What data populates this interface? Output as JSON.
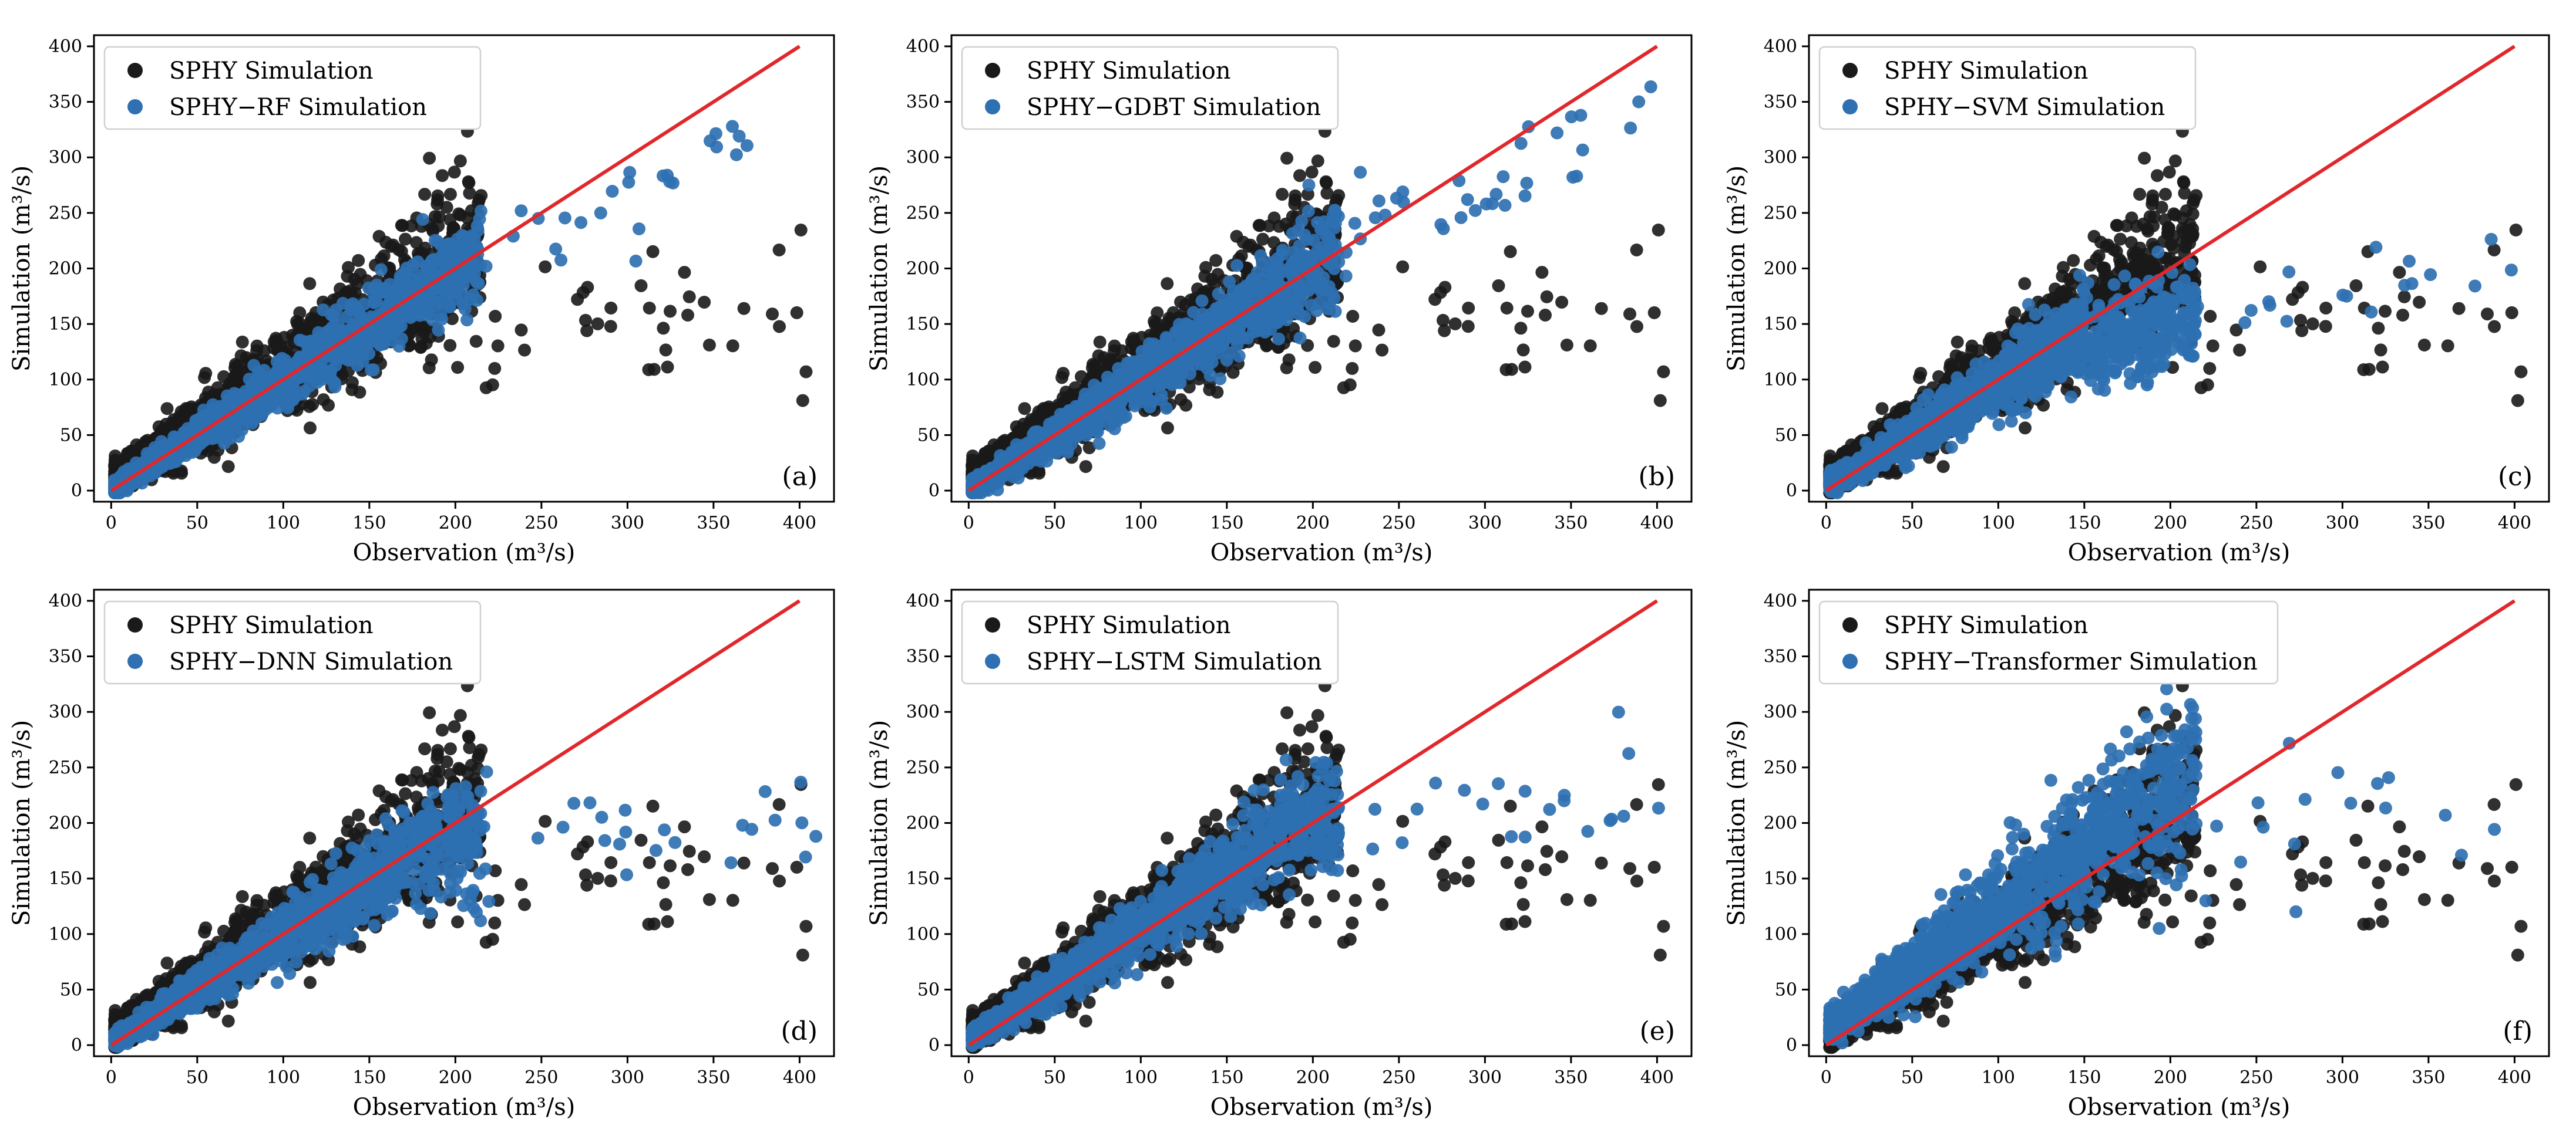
{
  "figure": {
    "colors": {
      "baseline": "#1a1a1a",
      "ml": "#2e70b1",
      "one_to_one_line": "#e0282c"
    }
  },
  "chart_data": [
    {
      "type": "scatter",
      "panel_tag": "(a)",
      "xlabel": "Observation (m³/s)",
      "ylabel": "Simulation (m³/s)",
      "xlim": [
        -10,
        420
      ],
      "ylim": [
        -10,
        410
      ],
      "xticks": [
        0,
        50,
        100,
        150,
        200,
        250,
        300,
        350,
        400
      ],
      "yticks": [
        0,
        50,
        100,
        150,
        200,
        250,
        300,
        350,
        400
      ],
      "legend_position": "top-left",
      "legend": [
        "SPHY Simulation",
        "SPHY−RF Simulation"
      ],
      "one_to_one_line": {
        "x": [
          0,
          400
        ],
        "y": [
          0,
          400
        ]
      },
      "series": [
        {
          "name": "SPHY Simulation",
          "model": "sphy",
          "seed": 11
        },
        {
          "name": "SPHY−RF Simulation",
          "model": "rf",
          "seed": 21
        }
      ]
    },
    {
      "type": "scatter",
      "panel_tag": "(b)",
      "xlabel": "Observation (m³/s)",
      "ylabel": "Simulation (m³/s)",
      "xlim": [
        -10,
        420
      ],
      "ylim": [
        -10,
        410
      ],
      "xticks": [
        0,
        50,
        100,
        150,
        200,
        250,
        300,
        350,
        400
      ],
      "yticks": [
        0,
        50,
        100,
        150,
        200,
        250,
        300,
        350,
        400
      ],
      "legend_position": "top-left",
      "legend": [
        "SPHY Simulation",
        "SPHY−GDBT Simulation"
      ],
      "one_to_one_line": {
        "x": [
          0,
          400
        ],
        "y": [
          0,
          400
        ]
      },
      "series": [
        {
          "name": "SPHY Simulation",
          "model": "sphy",
          "seed": 11
        },
        {
          "name": "SPHY−GDBT Simulation",
          "model": "gdbt",
          "seed": 22
        }
      ]
    },
    {
      "type": "scatter",
      "panel_tag": "(c)",
      "xlabel": "Observation (m³/s)",
      "ylabel": "Simulation (m³/s)",
      "xlim": [
        -10,
        420
      ],
      "ylim": [
        -10,
        410
      ],
      "xticks": [
        0,
        50,
        100,
        150,
        200,
        250,
        300,
        350,
        400
      ],
      "yticks": [
        0,
        50,
        100,
        150,
        200,
        250,
        300,
        350,
        400
      ],
      "legend_position": "top-left",
      "legend": [
        "SPHY Simulation",
        "SPHY−SVM Simulation"
      ],
      "one_to_one_line": {
        "x": [
          0,
          400
        ],
        "y": [
          0,
          400
        ]
      },
      "series": [
        {
          "name": "SPHY Simulation",
          "model": "sphy",
          "seed": 11
        },
        {
          "name": "SPHY−SVM Simulation",
          "model": "svm",
          "seed": 23
        }
      ]
    },
    {
      "type": "scatter",
      "panel_tag": "(d)",
      "xlabel": "Observation (m³/s)",
      "ylabel": "Simulation (m³/s)",
      "xlim": [
        -10,
        420
      ],
      "ylim": [
        -10,
        410
      ],
      "xticks": [
        0,
        50,
        100,
        150,
        200,
        250,
        300,
        350,
        400
      ],
      "yticks": [
        0,
        50,
        100,
        150,
        200,
        250,
        300,
        350,
        400
      ],
      "legend_position": "top-left",
      "legend": [
        "SPHY Simulation",
        "SPHY−DNN Simulation"
      ],
      "one_to_one_line": {
        "x": [
          0,
          400
        ],
        "y": [
          0,
          400
        ]
      },
      "series": [
        {
          "name": "SPHY Simulation",
          "model": "sphy",
          "seed": 11
        },
        {
          "name": "SPHY−DNN Simulation",
          "model": "dnn",
          "seed": 24
        }
      ]
    },
    {
      "type": "scatter",
      "panel_tag": "(e)",
      "xlabel": "Observation (m³/s)",
      "ylabel": "Simulation (m³/s)",
      "xlim": [
        -10,
        420
      ],
      "ylim": [
        -10,
        410
      ],
      "xticks": [
        0,
        50,
        100,
        150,
        200,
        250,
        300,
        350,
        400
      ],
      "yticks": [
        0,
        50,
        100,
        150,
        200,
        250,
        300,
        350,
        400
      ],
      "legend_position": "top-left",
      "legend": [
        "SPHY Simulation",
        "SPHY−LSTM Simulation"
      ],
      "one_to_one_line": {
        "x": [
          0,
          400
        ],
        "y": [
          0,
          400
        ]
      },
      "series": [
        {
          "name": "SPHY Simulation",
          "model": "sphy",
          "seed": 11
        },
        {
          "name": "SPHY−LSTM Simulation",
          "model": "lstm",
          "seed": 25
        }
      ]
    },
    {
      "type": "scatter",
      "panel_tag": "(f)",
      "xlabel": "Observation (m³/s)",
      "ylabel": "Simulation (m³/s)",
      "xlim": [
        -10,
        420
      ],
      "ylim": [
        -10,
        410
      ],
      "xticks": [
        0,
        50,
        100,
        150,
        200,
        250,
        300,
        350,
        400
      ],
      "yticks": [
        0,
        50,
        100,
        150,
        200,
        250,
        300,
        350,
        400
      ],
      "legend_position": "top-left",
      "legend": [
        "SPHY Simulation",
        "SPHY−Transformer Simulation"
      ],
      "one_to_one_line": {
        "x": [
          0,
          400
        ],
        "y": [
          0,
          400
        ]
      },
      "series": [
        {
          "name": "SPHY Simulation",
          "model": "sphy",
          "seed": 11
        },
        {
          "name": "SPHY−Transformer Simulation",
          "model": "transformer",
          "seed": 26
        }
      ]
    }
  ]
}
